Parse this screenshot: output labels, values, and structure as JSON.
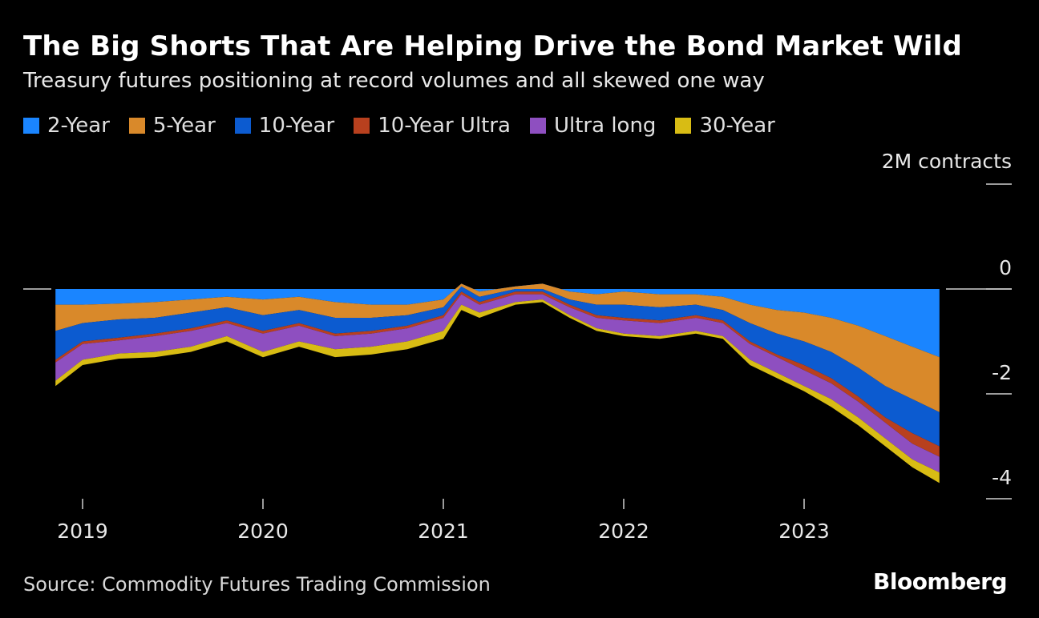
{
  "title": "The Big Shorts That Are Helping Drive the Bond Market Wild",
  "subtitle": "Treasury futures positioning at record volumes and all skewed one way",
  "source": "Source: Commodity Futures Trading Commission",
  "brand": "Bloomberg",
  "colors": {
    "background": "#000000",
    "2-Year": "#1a85ff",
    "5-Year": "#d9892a",
    "10-Year": "#0c5bd0",
    "10-Year Ultra": "#b8401e",
    "Ultra long": "#8e4fc0",
    "30-Year": "#d8bc14"
  },
  "chart_data": {
    "type": "area",
    "stacked": true,
    "title": "The Big Shorts That Are Helping Drive the Bond Market Wild",
    "subtitle": "Treasury futures positioning at record volumes and all skewed one way",
    "ylabel": "2M contracts",
    "y_unit_label": "2M contracts",
    "ylim": [
      -4,
      2
    ],
    "yticks": [
      "2M contracts",
      "0",
      "-2",
      "-4"
    ],
    "xticks": [
      "2019",
      "2020",
      "2021",
      "2022",
      "2023"
    ],
    "legend_position": "top-left",
    "x": [
      2018.85,
      2019.0,
      2019.2,
      2019.4,
      2019.6,
      2019.8,
      2020.0,
      2020.2,
      2020.4,
      2020.6,
      2020.8,
      2021.0,
      2021.1,
      2021.2,
      2021.4,
      2021.55,
      2021.7,
      2021.85,
      2022.0,
      2022.2,
      2022.4,
      2022.55,
      2022.7,
      2022.85,
      2023.0,
      2023.15,
      2023.3,
      2023.45,
      2023.6,
      2023.75
    ],
    "series": [
      {
        "name": "2-Year",
        "values": [
          -0.3,
          -0.3,
          -0.28,
          -0.25,
          -0.2,
          -0.15,
          -0.2,
          -0.15,
          -0.25,
          -0.3,
          -0.3,
          -0.2,
          0.1,
          -0.05,
          0.05,
          0.1,
          -0.05,
          -0.1,
          -0.05,
          -0.1,
          -0.1,
          -0.15,
          -0.3,
          -0.4,
          -0.45,
          -0.55,
          -0.7,
          -0.9,
          -1.1,
          -1.3
        ]
      },
      {
        "name": "5-Year",
        "values": [
          -0.5,
          -0.35,
          -0.3,
          -0.3,
          -0.25,
          -0.2,
          -0.3,
          -0.25,
          -0.3,
          -0.25,
          -0.2,
          -0.15,
          -0.05,
          -0.1,
          -0.05,
          -0.1,
          -0.15,
          -0.2,
          -0.25,
          -0.25,
          -0.2,
          -0.25,
          -0.35,
          -0.45,
          -0.55,
          -0.65,
          -0.8,
          -0.95,
          -1.0,
          -1.05
        ]
      },
      {
        "name": "10-Year",
        "values": [
          -0.55,
          -0.35,
          -0.35,
          -0.3,
          -0.3,
          -0.25,
          -0.3,
          -0.25,
          -0.3,
          -0.25,
          -0.2,
          -0.15,
          -0.1,
          -0.1,
          -0.05,
          -0.05,
          -0.1,
          -0.2,
          -0.25,
          -0.25,
          -0.2,
          -0.2,
          -0.35,
          -0.4,
          -0.45,
          -0.5,
          -0.55,
          -0.6,
          -0.65,
          -0.65
        ]
      },
      {
        "name": "10-Year Ultra",
        "values": [
          -0.05,
          -0.05,
          -0.05,
          -0.05,
          -0.05,
          -0.05,
          -0.05,
          -0.05,
          -0.05,
          -0.05,
          -0.05,
          -0.05,
          -0.05,
          -0.05,
          -0.05,
          -0.05,
          -0.05,
          -0.05,
          -0.05,
          -0.05,
          -0.05,
          -0.05,
          -0.05,
          -0.05,
          -0.1,
          -0.1,
          -0.1,
          -0.1,
          -0.2,
          -0.2
        ]
      },
      {
        "name": "Ultra long",
        "values": [
          -0.35,
          -0.3,
          -0.25,
          -0.3,
          -0.3,
          -0.25,
          -0.35,
          -0.3,
          -0.25,
          -0.25,
          -0.25,
          -0.25,
          -0.2,
          -0.15,
          -0.15,
          -0.1,
          -0.15,
          -0.2,
          -0.25,
          -0.25,
          -0.25,
          -0.25,
          -0.3,
          -0.3,
          -0.3,
          -0.3,
          -0.3,
          -0.3,
          -0.3,
          -0.3
        ]
      },
      {
        "name": "30-Year",
        "values": [
          -0.1,
          -0.1,
          -0.1,
          -0.1,
          -0.1,
          -0.1,
          -0.1,
          -0.1,
          -0.15,
          -0.15,
          -0.15,
          -0.15,
          -0.1,
          -0.1,
          -0.05,
          -0.05,
          -0.05,
          -0.05,
          -0.05,
          -0.05,
          -0.05,
          -0.05,
          -0.1,
          -0.1,
          -0.1,
          -0.15,
          -0.15,
          -0.15,
          -0.15,
          -0.2
        ]
      }
    ]
  },
  "legend": [
    {
      "label": "2-Year",
      "color": "#1a85ff"
    },
    {
      "label": "5-Year",
      "color": "#d9892a"
    },
    {
      "label": "10-Year",
      "color": "#0c5bd0"
    },
    {
      "label": "10-Year Ultra",
      "color": "#b8401e"
    },
    {
      "label": "Ultra long",
      "color": "#8e4fc0"
    },
    {
      "label": "30-Year",
      "color": "#d8bc14"
    }
  ]
}
